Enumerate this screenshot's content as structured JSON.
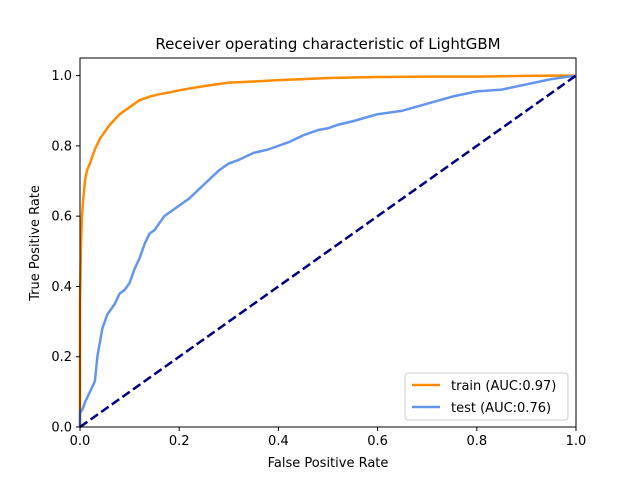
{
  "chart_data": {
    "type": "line",
    "title": "Receiver operating characteristic of LightGBM",
    "xlabel": "False Positive Rate",
    "ylabel": "True Positive Rate",
    "xlim": [
      0.0,
      1.0
    ],
    "ylim": [
      0.0,
      1.05
    ],
    "xticks": [
      "0.0",
      "0.2",
      "0.4",
      "0.6",
      "0.8",
      "1.0"
    ],
    "yticks": [
      "0.0",
      "0.2",
      "0.4",
      "0.6",
      "0.8",
      "1.0"
    ],
    "grid": false,
    "legend_position": "lower-right",
    "series": [
      {
        "name": "train (AUC:0.97)",
        "color": "#ff8c00",
        "style": "solid",
        "x": [
          0.0,
          0.0,
          0.002,
          0.004,
          0.006,
          0.01,
          0.014,
          0.02,
          0.03,
          0.04,
          0.05,
          0.06,
          0.07,
          0.08,
          0.1,
          0.12,
          0.14,
          0.16,
          0.18,
          0.2,
          0.22,
          0.25,
          0.3,
          0.35,
          0.4,
          0.45,
          0.5,
          0.6,
          0.7,
          0.8,
          0.85,
          0.9,
          0.95,
          1.0
        ],
        "y": [
          0.0,
          0.35,
          0.52,
          0.6,
          0.64,
          0.7,
          0.73,
          0.75,
          0.79,
          0.82,
          0.84,
          0.86,
          0.875,
          0.89,
          0.91,
          0.93,
          0.94,
          0.947,
          0.952,
          0.958,
          0.963,
          0.97,
          0.98,
          0.983,
          0.987,
          0.99,
          0.993,
          0.996,
          0.997,
          0.997,
          0.998,
          0.999,
          1.0,
          1.0
        ]
      },
      {
        "name": "test (AUC:0.76)",
        "color": "#6495ed",
        "style": "solid",
        "x": [
          0.0,
          0.0,
          0.005,
          0.01,
          0.02,
          0.03,
          0.035,
          0.04,
          0.045,
          0.05,
          0.055,
          0.06,
          0.07,
          0.08,
          0.09,
          0.1,
          0.11,
          0.12,
          0.13,
          0.14,
          0.15,
          0.16,
          0.17,
          0.18,
          0.2,
          0.22,
          0.25,
          0.28,
          0.3,
          0.32,
          0.35,
          0.38,
          0.4,
          0.42,
          0.45,
          0.48,
          0.5,
          0.52,
          0.55,
          0.6,
          0.65,
          0.7,
          0.75,
          0.8,
          0.85,
          0.9,
          0.95,
          1.0
        ],
        "y": [
          0.0,
          0.04,
          0.05,
          0.07,
          0.1,
          0.13,
          0.2,
          0.24,
          0.28,
          0.3,
          0.32,
          0.33,
          0.35,
          0.38,
          0.39,
          0.41,
          0.45,
          0.48,
          0.52,
          0.55,
          0.56,
          0.58,
          0.6,
          0.61,
          0.63,
          0.65,
          0.69,
          0.73,
          0.75,
          0.76,
          0.78,
          0.79,
          0.8,
          0.81,
          0.83,
          0.845,
          0.85,
          0.86,
          0.87,
          0.89,
          0.9,
          0.92,
          0.94,
          0.955,
          0.96,
          0.975,
          0.99,
          1.0
        ]
      },
      {
        "name": "",
        "color": "#000080",
        "style": "dashed",
        "x": [
          0.0,
          1.0
        ],
        "y": [
          0.0,
          1.0
        ]
      }
    ]
  }
}
